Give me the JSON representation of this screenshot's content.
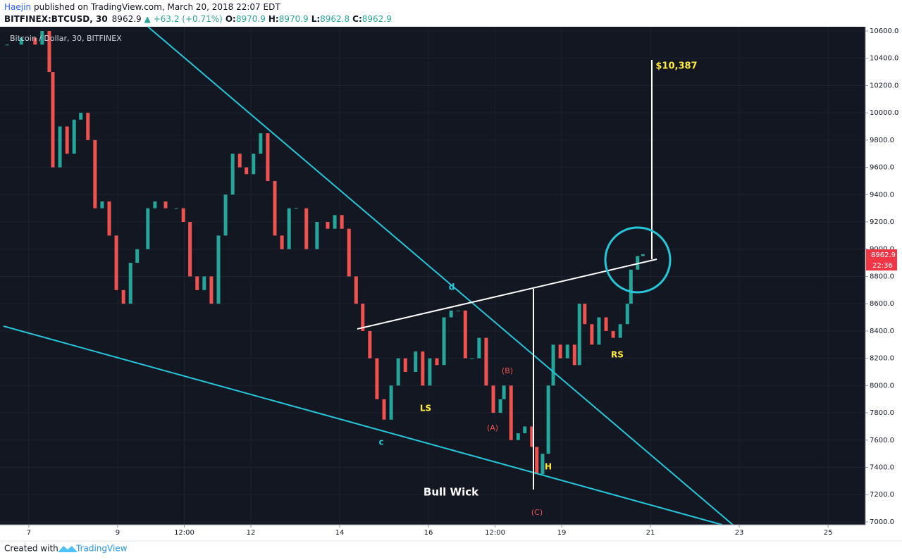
{
  "header": {
    "author": "Haejin",
    "published": "published on TradingView.com, March 20, 2018 22:07 EDT",
    "symbol": "BITFINEX:BTCUSD, 30",
    "price": "8962.9",
    "change": "▲ +63.2 (+0.71%)",
    "ohlc": [
      {
        "label": "O:",
        "value": "8970.9"
      },
      {
        "label": "H:",
        "value": "8970.9"
      },
      {
        "label": "L:",
        "value": "8962.8"
      },
      {
        "label": "C:",
        "value": "8962.9"
      }
    ]
  },
  "chart_data": {
    "type": "candlestick",
    "x": [
      6.51,
      6.83,
      7.14,
      7.3,
      7.46,
      7.54,
      7.7,
      7.86,
      8.02,
      8.17,
      8.33,
      8.49,
      8.65,
      8.81,
      8.97,
      9.13,
      9.29,
      9.44,
      9.68,
      9.84,
      10.08,
      10.32,
      10.48,
      10.63,
      10.79,
      10.95,
      11.11,
      11.27,
      11.43,
      11.59,
      11.75,
      11.9,
      12.06,
      12.22,
      12.38,
      12.54,
      12.7,
      12.86,
      13.02,
      13.25,
      13.49,
      13.73,
      13.89,
      14.05,
      14.21,
      14.37,
      14.52,
      14.68,
      14.84,
      15.0,
      15.16,
      15.32,
      15.48,
      15.71,
      15.87,
      16.03,
      16.19,
      16.35,
      16.51,
      16.67,
      16.83,
      16.98,
      17.14,
      17.3,
      17.46,
      17.62,
      17.7,
      17.86,
      18.02,
      18.17,
      18.33,
      18.44,
      18.57,
      18.7,
      18.81,
      18.97,
      19.13,
      19.29,
      19.4,
      19.52,
      19.68,
      19.84,
      20.0,
      20.16,
      20.32,
      20.48,
      20.56,
      20.71,
      20.83
    ],
    "series": [
      {
        "name": "Bitcoin / Dollar, 30, BITFINEX",
        "up_color": "#26a69a",
        "down_color": "#ef5350",
        "values": [
          10500,
          10550,
          10500,
          10600,
          10300,
          9600,
          9900,
          9700,
          9950,
          10000,
          9800,
          9300,
          9350,
          9100,
          8700,
          8600,
          8900,
          9000,
          9300,
          9350,
          9300,
          9300,
          9200,
          8800,
          8700,
          8800,
          8600,
          9100,
          9400,
          9700,
          9600,
          9550,
          9700,
          9850,
          9500,
          9100,
          9000,
          9300,
          9300,
          9000,
          9200,
          9150,
          9250,
          9150,
          8800,
          8600,
          8400,
          8200,
          7900,
          7750,
          8000,
          8200,
          8100,
          8250,
          8000,
          8200,
          8150,
          8500,
          8550,
          8550,
          8200,
          8200,
          8350,
          8000,
          7800,
          7900,
          8000,
          7600,
          7650,
          7700,
          7550,
          7350,
          7500,
          8000,
          8300,
          8200,
          8300,
          8150,
          8600,
          8450,
          8300,
          8500,
          8400,
          8350,
          8450,
          8600,
          8850,
          8950,
          8962.9
        ]
      }
    ],
    "xlim": [
      6.35,
      25.84
    ],
    "xticks": [
      7,
      9,
      {
        "value": 10.5,
        "label": "12:00"
      },
      12,
      14,
      16,
      {
        "value": 17.5,
        "label": "12:00"
      },
      19,
      21,
      23,
      25
    ],
    "ylim": [
      6979,
      10631
    ],
    "yticks": [
      {
        "value": 10600,
        "label": "10600.0"
      },
      {
        "value": 10400,
        "label": "10400.0"
      },
      {
        "value": 10200,
        "label": "10200.0"
      },
      {
        "value": 10000,
        "label": "10000.0"
      },
      {
        "value": 9800,
        "label": "9800.0"
      },
      {
        "value": 9600,
        "label": "9600.0"
      },
      {
        "value": 9400,
        "label": "9400.0"
      },
      {
        "value": 9200,
        "label": "9200.0"
      },
      {
        "value": 9000,
        "label": "9000.0"
      },
      {
        "value": 8800,
        "label": "8800.0"
      },
      {
        "value": 8600,
        "label": "8600.0"
      },
      {
        "value": 8400,
        "label": "8400.0"
      },
      {
        "value": 8200,
        "label": "8200.0"
      },
      {
        "value": 8000,
        "label": "8000.0"
      },
      {
        "value": 7800,
        "label": "7800.0"
      },
      {
        "value": 7600,
        "label": "7600.0"
      },
      {
        "value": 7400,
        "label": "7400.0"
      },
      {
        "value": 7200,
        "label": "7200.0"
      },
      {
        "value": 7000,
        "label": "7000.0"
      }
    ],
    "grid": true,
    "grid_color": "#1e2230",
    "countdown": "22:36",
    "annotations": [
      "d",
      "c",
      "LS",
      "(B)",
      "(A)",
      "H",
      "(C)",
      "RS",
      "Bull Wick",
      "$10,387"
    ]
  },
  "footer": {
    "created": "Created with",
    "brand": "TradingView"
  }
}
